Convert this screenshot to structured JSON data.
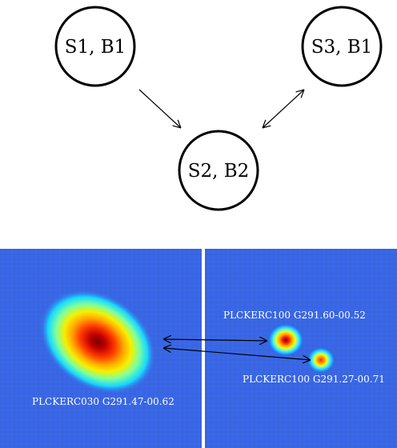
{
  "nodes": {
    "s1b1": "S1, B1",
    "s3b1": "S3, B1",
    "s2b2": "S2, B2"
  },
  "panels": {
    "left_source_label": "PLCKERC030 G291.47-00.62",
    "right_source_a_label": "PLCKERC100 G291.60-00.52",
    "right_source_b_label": "PLCKERC100 G291.27-00.71"
  },
  "colors": {
    "map_background": "#3a68e8",
    "outline": "#000000",
    "divider": "#ffffff",
    "annotation_text": "#ffffff",
    "colormap": "jet"
  }
}
